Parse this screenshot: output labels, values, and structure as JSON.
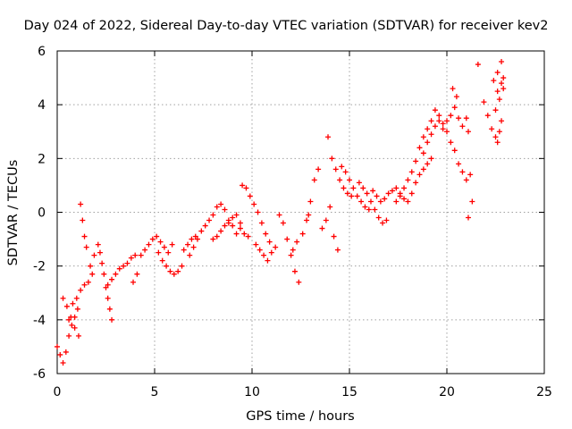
{
  "chart_data": {
    "type": "scatter",
    "title": "Day 024 of 2022, Sidereal Day-to-day VTEC variation (SDTVAR) for receiver kev2",
    "xlabel": "GPS time / hours",
    "ylabel": "SDTVAR / TECUs",
    "xlim": [
      0,
      25
    ],
    "ylim": [
      -6,
      6
    ],
    "xticks": [
      "0",
      "5",
      "10",
      "15",
      "20",
      "25"
    ],
    "yticks": [
      "-6",
      "-4",
      "-2",
      "0",
      "2",
      "4",
      "6"
    ],
    "grid": true,
    "marker": "+",
    "series": [
      {
        "name": "SDTVAR",
        "color": "#ff0000",
        "points": [
          [
            0.0,
            -5.0
          ],
          [
            0.15,
            -5.3
          ],
          [
            0.3,
            -5.6
          ],
          [
            0.45,
            -5.2
          ],
          [
            0.6,
            -4.6
          ],
          [
            0.75,
            -4.2
          ],
          [
            0.9,
            -3.9
          ],
          [
            1.05,
            -3.6
          ],
          [
            0.3,
            -3.2
          ],
          [
            0.5,
            -3.5
          ],
          [
            0.7,
            -3.9
          ],
          [
            0.9,
            -4.3
          ],
          [
            1.1,
            -4.6
          ],
          [
            0.6,
            -4.0
          ],
          [
            0.8,
            -3.4
          ],
          [
            1.0,
            -3.2
          ],
          [
            1.2,
            0.3
          ],
          [
            1.3,
            -0.3
          ],
          [
            1.4,
            -0.9
          ],
          [
            1.5,
            -1.3
          ],
          [
            1.2,
            -2.9
          ],
          [
            1.4,
            -2.7
          ],
          [
            1.6,
            -2.6
          ],
          [
            1.8,
            -2.3
          ],
          [
            1.7,
            -2.0
          ],
          [
            1.9,
            -1.6
          ],
          [
            2.1,
            -1.2
          ],
          [
            2.2,
            -1.5
          ],
          [
            2.3,
            -1.9
          ],
          [
            2.4,
            -2.3
          ],
          [
            2.5,
            -2.8
          ],
          [
            2.6,
            -3.2
          ],
          [
            2.7,
            -3.6
          ],
          [
            2.8,
            -4.0
          ],
          [
            2.6,
            -2.7
          ],
          [
            2.8,
            -2.5
          ],
          [
            3.0,
            -2.3
          ],
          [
            3.2,
            -2.1
          ],
          [
            3.4,
            -2.0
          ],
          [
            3.6,
            -1.9
          ],
          [
            3.8,
            -1.7
          ],
          [
            4.0,
            -1.6
          ],
          [
            3.9,
            -2.6
          ],
          [
            4.1,
            -2.3
          ],
          [
            4.3,
            -1.6
          ],
          [
            4.5,
            -1.4
          ],
          [
            4.7,
            -1.2
          ],
          [
            4.9,
            -1.0
          ],
          [
            5.1,
            -0.9
          ],
          [
            5.3,
            -1.1
          ],
          [
            5.5,
            -1.3
          ],
          [
            5.7,
            -1.5
          ],
          [
            5.9,
            -1.2
          ],
          [
            5.2,
            -1.5
          ],
          [
            5.4,
            -1.8
          ],
          [
            5.6,
            -2.0
          ],
          [
            5.8,
            -2.2
          ],
          [
            6.0,
            -2.3
          ],
          [
            6.2,
            -2.2
          ],
          [
            6.4,
            -2.0
          ],
          [
            6.5,
            -1.4
          ],
          [
            6.7,
            -1.2
          ],
          [
            6.9,
            -1.0
          ],
          [
            7.1,
            -0.9
          ],
          [
            6.8,
            -1.6
          ],
          [
            7.0,
            -1.3
          ],
          [
            7.2,
            -1.0
          ],
          [
            7.4,
            -0.7
          ],
          [
            7.6,
            -0.5
          ],
          [
            7.8,
            -0.3
          ],
          [
            8.0,
            -0.1
          ],
          [
            8.2,
            0.2
          ],
          [
            8.4,
            0.3
          ],
          [
            8.6,
            0.1
          ],
          [
            8.8,
            -0.3
          ],
          [
            9.0,
            -0.2
          ],
          [
            9.2,
            -0.1
          ],
          [
            9.4,
            -0.4
          ],
          [
            9.6,
            -0.8
          ],
          [
            9.8,
            -0.9
          ],
          [
            8.0,
            -1.0
          ],
          [
            8.2,
            -0.9
          ],
          [
            8.4,
            -0.7
          ],
          [
            8.6,
            -0.5
          ],
          [
            8.8,
            -0.4
          ],
          [
            9.0,
            -0.5
          ],
          [
            9.2,
            -0.8
          ],
          [
            9.4,
            -0.6
          ],
          [
            9.5,
            1.0
          ],
          [
            9.7,
            0.9
          ],
          [
            9.9,
            0.6
          ],
          [
            10.1,
            0.3
          ],
          [
            10.3,
            0.0
          ],
          [
            10.5,
            -0.4
          ],
          [
            10.7,
            -0.8
          ],
          [
            10.9,
            -1.1
          ],
          [
            10.2,
            -1.2
          ],
          [
            10.4,
            -1.4
          ],
          [
            10.6,
            -1.6
          ],
          [
            10.8,
            -1.8
          ],
          [
            11.0,
            -1.5
          ],
          [
            11.2,
            -1.3
          ],
          [
            11.4,
            -0.1
          ],
          [
            11.6,
            -0.4
          ],
          [
            11.8,
            -1.0
          ],
          [
            12.0,
            -1.6
          ],
          [
            12.2,
            -2.2
          ],
          [
            12.4,
            -2.6
          ],
          [
            12.1,
            -1.4
          ],
          [
            12.3,
            -1.1
          ],
          [
            12.6,
            -0.8
          ],
          [
            12.8,
            -0.3
          ],
          [
            12.9,
            -0.1
          ],
          [
            13.0,
            0.4
          ],
          [
            13.2,
            1.2
          ],
          [
            13.4,
            1.6
          ],
          [
            13.6,
            -0.6
          ],
          [
            13.8,
            -0.3
          ],
          [
            14.0,
            0.2
          ],
          [
            14.2,
            -0.9
          ],
          [
            14.4,
            -1.4
          ],
          [
            13.9,
            2.8
          ],
          [
            14.1,
            2.0
          ],
          [
            14.3,
            1.6
          ],
          [
            14.5,
            1.2
          ],
          [
            14.7,
            0.9
          ],
          [
            14.9,
            0.7
          ],
          [
            15.1,
            0.6
          ],
          [
            14.6,
            1.7
          ],
          [
            14.8,
            1.5
          ],
          [
            15.0,
            1.2
          ],
          [
            15.2,
            0.9
          ],
          [
            15.4,
            0.6
          ],
          [
            15.6,
            0.4
          ],
          [
            15.8,
            0.2
          ],
          [
            16.0,
            0.1
          ],
          [
            15.5,
            1.1
          ],
          [
            15.7,
            0.9
          ],
          [
            15.9,
            0.7
          ],
          [
            16.1,
            0.4
          ],
          [
            16.3,
            0.1
          ],
          [
            16.5,
            -0.2
          ],
          [
            16.7,
            -0.4
          ],
          [
            16.9,
            -0.3
          ],
          [
            16.2,
            0.8
          ],
          [
            16.4,
            0.6
          ],
          [
            16.6,
            0.4
          ],
          [
            16.8,
            0.5
          ],
          [
            17.0,
            0.7
          ],
          [
            17.2,
            0.8
          ],
          [
            17.4,
            0.9
          ],
          [
            17.6,
            0.7
          ],
          [
            17.8,
            0.5
          ],
          [
            18.0,
            0.4
          ],
          [
            18.2,
            0.7
          ],
          [
            18.4,
            1.1
          ],
          [
            18.6,
            1.4
          ],
          [
            18.8,
            1.6
          ],
          [
            19.0,
            1.8
          ],
          [
            19.2,
            2.0
          ],
          [
            17.4,
            0.4
          ],
          [
            17.6,
            0.6
          ],
          [
            17.8,
            0.9
          ],
          [
            18.0,
            1.2
          ],
          [
            18.2,
            1.5
          ],
          [
            18.4,
            1.9
          ],
          [
            18.6,
            2.4
          ],
          [
            18.8,
            2.8
          ],
          [
            19.0,
            3.1
          ],
          [
            19.2,
            3.4
          ],
          [
            19.4,
            3.8
          ],
          [
            19.6,
            3.6
          ],
          [
            19.8,
            3.3
          ],
          [
            20.0,
            3.0
          ],
          [
            20.2,
            2.6
          ],
          [
            20.4,
            2.3
          ],
          [
            18.8,
            2.2
          ],
          [
            19.0,
            2.6
          ],
          [
            19.2,
            2.9
          ],
          [
            19.4,
            3.2
          ],
          [
            19.6,
            3.4
          ],
          [
            19.8,
            3.1
          ],
          [
            20.0,
            3.4
          ],
          [
            20.2,
            3.6
          ],
          [
            20.4,
            3.9
          ],
          [
            20.6,
            3.5
          ],
          [
            20.8,
            3.2
          ],
          [
            21.0,
            3.5
          ],
          [
            21.1,
            3.0
          ],
          [
            20.6,
            1.8
          ],
          [
            20.8,
            1.5
          ],
          [
            21.0,
            1.2
          ],
          [
            21.2,
            1.4
          ],
          [
            21.3,
            0.4
          ],
          [
            21.1,
            -0.2
          ],
          [
            20.3,
            4.6
          ],
          [
            20.5,
            4.3
          ],
          [
            21.6,
            5.5
          ],
          [
            21.9,
            4.1
          ],
          [
            22.1,
            3.6
          ],
          [
            22.3,
            3.1
          ],
          [
            22.5,
            2.8
          ],
          [
            22.7,
            3.0
          ],
          [
            22.4,
            4.9
          ],
          [
            22.6,
            5.2
          ],
          [
            22.8,
            5.6
          ],
          [
            22.9,
            4.6
          ],
          [
            22.7,
            4.2
          ],
          [
            22.5,
            3.8
          ],
          [
            22.6,
            4.5
          ],
          [
            22.8,
            4.8
          ],
          [
            22.9,
            5.0
          ],
          [
            22.6,
            2.6
          ],
          [
            22.8,
            3.4
          ]
        ]
      }
    ]
  }
}
